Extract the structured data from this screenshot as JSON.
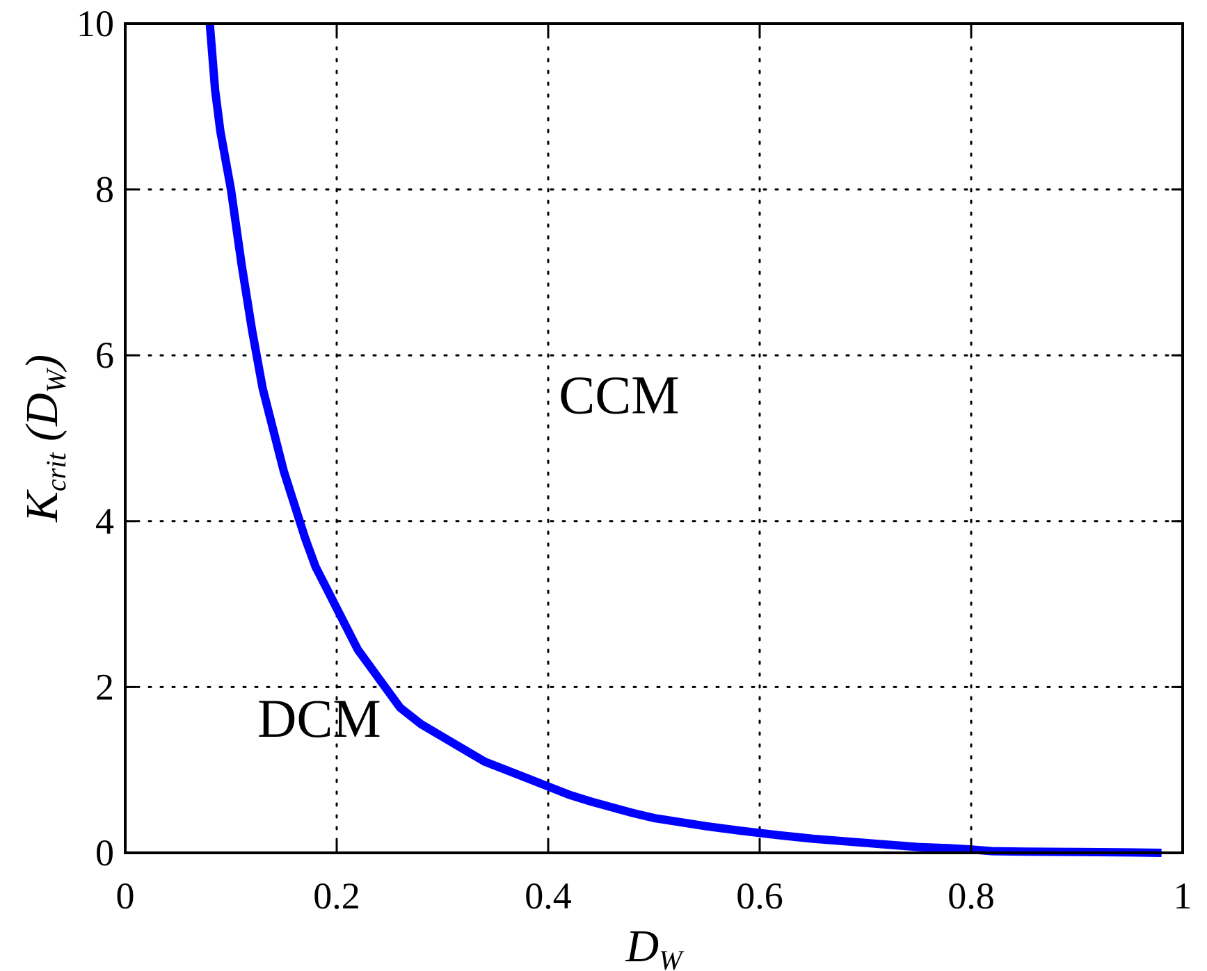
{
  "chart_data": {
    "type": "line",
    "xlabel": {
      "main": "D",
      "sub": "W"
    },
    "ylabel": {
      "main": "K",
      "sub": "crit",
      "paren_open": " (D",
      "paren_sub": "W",
      "paren_close": ")"
    },
    "xlim": [
      0,
      1
    ],
    "ylim": [
      0,
      10
    ],
    "x_ticks": [
      0,
      0.2,
      0.4,
      0.6,
      0.8,
      1
    ],
    "x_tick_labels": [
      "0",
      "0.2",
      "0.4",
      "0.6",
      "0.8",
      "1"
    ],
    "y_ticks": [
      0,
      2,
      4,
      6,
      8,
      10
    ],
    "y_tick_labels": [
      "0",
      "2",
      "4",
      "6",
      "8",
      "10"
    ],
    "grid": true,
    "grid_style": "dotted",
    "annotations": [
      {
        "text": "CCM",
        "x": 0.41,
        "y": 5.3
      },
      {
        "text": "DCM",
        "x": 0.125,
        "y": 1.4
      }
    ],
    "series": [
      {
        "color": "#0000ff",
        "x": [
          0.08,
          0.085,
          0.09,
          0.1,
          0.11,
          0.12,
          0.13,
          0.14,
          0.15,
          0.16,
          0.17,
          0.18,
          0.19,
          0.2,
          0.22,
          0.24,
          0.26,
          0.28,
          0.3,
          0.32,
          0.34,
          0.36,
          0.38,
          0.4,
          0.42,
          0.44,
          0.46,
          0.48,
          0.5,
          0.52,
          0.55,
          0.58,
          0.6,
          0.62,
          0.65,
          0.68,
          0.7,
          0.72,
          0.75,
          0.78,
          0.8,
          0.82,
          0.85,
          0.9,
          0.95,
          0.98
        ],
        "y": [
          10.0,
          9.2,
          8.7,
          8.0,
          7.1,
          6.3,
          5.6,
          5.1,
          4.6,
          4.2,
          3.8,
          3.45,
          3.2,
          2.95,
          2.45,
          2.1,
          1.75,
          1.55,
          1.4,
          1.25,
          1.1,
          1.0,
          0.9,
          0.8,
          0.7,
          0.62,
          0.55,
          0.48,
          0.42,
          0.38,
          0.32,
          0.27,
          0.24,
          0.21,
          0.17,
          0.14,
          0.12,
          0.1,
          0.07,
          0.055,
          0.04,
          0.02,
          0.015,
          0.01,
          0.005,
          0.0
        ]
      }
    ]
  }
}
